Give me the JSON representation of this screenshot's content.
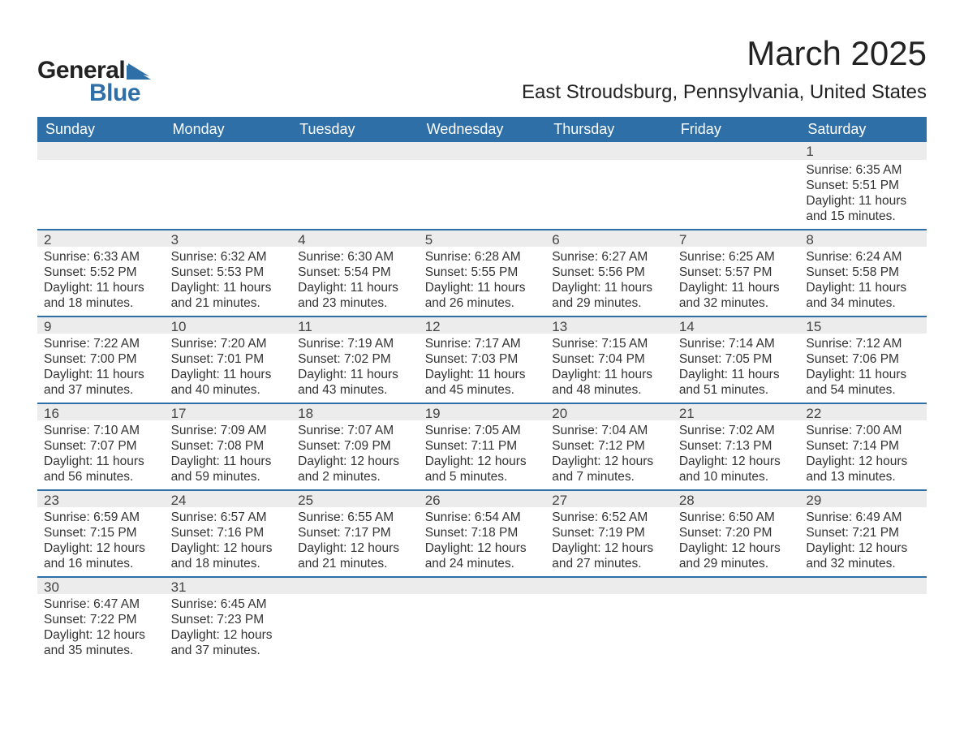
{
  "logo": {
    "text_general": "General",
    "text_blue": "Blue",
    "flag_color": "#2f6fa7"
  },
  "title": "March 2025",
  "location": "East Stroudsburg, Pennsylvania, United States",
  "colors": {
    "header_bg": "#2f6fa7",
    "header_text": "#ffffff",
    "band_bg": "#ececec",
    "band_border": "#2f6fa7",
    "body_text": "#333333",
    "page_bg": "#ffffff"
  },
  "weekdays": [
    "Sunday",
    "Monday",
    "Tuesday",
    "Wednesday",
    "Thursday",
    "Friday",
    "Saturday"
  ],
  "weeks": [
    [
      {
        "n": "",
        "sunrise": "",
        "sunset": "",
        "daylight": ""
      },
      {
        "n": "",
        "sunrise": "",
        "sunset": "",
        "daylight": ""
      },
      {
        "n": "",
        "sunrise": "",
        "sunset": "",
        "daylight": ""
      },
      {
        "n": "",
        "sunrise": "",
        "sunset": "",
        "daylight": ""
      },
      {
        "n": "",
        "sunrise": "",
        "sunset": "",
        "daylight": ""
      },
      {
        "n": "",
        "sunrise": "",
        "sunset": "",
        "daylight": ""
      },
      {
        "n": "1",
        "sunrise": "Sunrise: 6:35 AM",
        "sunset": "Sunset: 5:51 PM",
        "daylight": "Daylight: 11 hours and 15 minutes."
      }
    ],
    [
      {
        "n": "2",
        "sunrise": "Sunrise: 6:33 AM",
        "sunset": "Sunset: 5:52 PM",
        "daylight": "Daylight: 11 hours and 18 minutes."
      },
      {
        "n": "3",
        "sunrise": "Sunrise: 6:32 AM",
        "sunset": "Sunset: 5:53 PM",
        "daylight": "Daylight: 11 hours and 21 minutes."
      },
      {
        "n": "4",
        "sunrise": "Sunrise: 6:30 AM",
        "sunset": "Sunset: 5:54 PM",
        "daylight": "Daylight: 11 hours and 23 minutes."
      },
      {
        "n": "5",
        "sunrise": "Sunrise: 6:28 AM",
        "sunset": "Sunset: 5:55 PM",
        "daylight": "Daylight: 11 hours and 26 minutes."
      },
      {
        "n": "6",
        "sunrise": "Sunrise: 6:27 AM",
        "sunset": "Sunset: 5:56 PM",
        "daylight": "Daylight: 11 hours and 29 minutes."
      },
      {
        "n": "7",
        "sunrise": "Sunrise: 6:25 AM",
        "sunset": "Sunset: 5:57 PM",
        "daylight": "Daylight: 11 hours and 32 minutes."
      },
      {
        "n": "8",
        "sunrise": "Sunrise: 6:24 AM",
        "sunset": "Sunset: 5:58 PM",
        "daylight": "Daylight: 11 hours and 34 minutes."
      }
    ],
    [
      {
        "n": "9",
        "sunrise": "Sunrise: 7:22 AM",
        "sunset": "Sunset: 7:00 PM",
        "daylight": "Daylight: 11 hours and 37 minutes."
      },
      {
        "n": "10",
        "sunrise": "Sunrise: 7:20 AM",
        "sunset": "Sunset: 7:01 PM",
        "daylight": "Daylight: 11 hours and 40 minutes."
      },
      {
        "n": "11",
        "sunrise": "Sunrise: 7:19 AM",
        "sunset": "Sunset: 7:02 PM",
        "daylight": "Daylight: 11 hours and 43 minutes."
      },
      {
        "n": "12",
        "sunrise": "Sunrise: 7:17 AM",
        "sunset": "Sunset: 7:03 PM",
        "daylight": "Daylight: 11 hours and 45 minutes."
      },
      {
        "n": "13",
        "sunrise": "Sunrise: 7:15 AM",
        "sunset": "Sunset: 7:04 PM",
        "daylight": "Daylight: 11 hours and 48 minutes."
      },
      {
        "n": "14",
        "sunrise": "Sunrise: 7:14 AM",
        "sunset": "Sunset: 7:05 PM",
        "daylight": "Daylight: 11 hours and 51 minutes."
      },
      {
        "n": "15",
        "sunrise": "Sunrise: 7:12 AM",
        "sunset": "Sunset: 7:06 PM",
        "daylight": "Daylight: 11 hours and 54 minutes."
      }
    ],
    [
      {
        "n": "16",
        "sunrise": "Sunrise: 7:10 AM",
        "sunset": "Sunset: 7:07 PM",
        "daylight": "Daylight: 11 hours and 56 minutes."
      },
      {
        "n": "17",
        "sunrise": "Sunrise: 7:09 AM",
        "sunset": "Sunset: 7:08 PM",
        "daylight": "Daylight: 11 hours and 59 minutes."
      },
      {
        "n": "18",
        "sunrise": "Sunrise: 7:07 AM",
        "sunset": "Sunset: 7:09 PM",
        "daylight": "Daylight: 12 hours and 2 minutes."
      },
      {
        "n": "19",
        "sunrise": "Sunrise: 7:05 AM",
        "sunset": "Sunset: 7:11 PM",
        "daylight": "Daylight: 12 hours and 5 minutes."
      },
      {
        "n": "20",
        "sunrise": "Sunrise: 7:04 AM",
        "sunset": "Sunset: 7:12 PM",
        "daylight": "Daylight: 12 hours and 7 minutes."
      },
      {
        "n": "21",
        "sunrise": "Sunrise: 7:02 AM",
        "sunset": "Sunset: 7:13 PM",
        "daylight": "Daylight: 12 hours and 10 minutes."
      },
      {
        "n": "22",
        "sunrise": "Sunrise: 7:00 AM",
        "sunset": "Sunset: 7:14 PM",
        "daylight": "Daylight: 12 hours and 13 minutes."
      }
    ],
    [
      {
        "n": "23",
        "sunrise": "Sunrise: 6:59 AM",
        "sunset": "Sunset: 7:15 PM",
        "daylight": "Daylight: 12 hours and 16 minutes."
      },
      {
        "n": "24",
        "sunrise": "Sunrise: 6:57 AM",
        "sunset": "Sunset: 7:16 PM",
        "daylight": "Daylight: 12 hours and 18 minutes."
      },
      {
        "n": "25",
        "sunrise": "Sunrise: 6:55 AM",
        "sunset": "Sunset: 7:17 PM",
        "daylight": "Daylight: 12 hours and 21 minutes."
      },
      {
        "n": "26",
        "sunrise": "Sunrise: 6:54 AM",
        "sunset": "Sunset: 7:18 PM",
        "daylight": "Daylight: 12 hours and 24 minutes."
      },
      {
        "n": "27",
        "sunrise": "Sunrise: 6:52 AM",
        "sunset": "Sunset: 7:19 PM",
        "daylight": "Daylight: 12 hours and 27 minutes."
      },
      {
        "n": "28",
        "sunrise": "Sunrise: 6:50 AM",
        "sunset": "Sunset: 7:20 PM",
        "daylight": "Daylight: 12 hours and 29 minutes."
      },
      {
        "n": "29",
        "sunrise": "Sunrise: 6:49 AM",
        "sunset": "Sunset: 7:21 PM",
        "daylight": "Daylight: 12 hours and 32 minutes."
      }
    ],
    [
      {
        "n": "30",
        "sunrise": "Sunrise: 6:47 AM",
        "sunset": "Sunset: 7:22 PM",
        "daylight": "Daylight: 12 hours and 35 minutes."
      },
      {
        "n": "31",
        "sunrise": "Sunrise: 6:45 AM",
        "sunset": "Sunset: 7:23 PM",
        "daylight": "Daylight: 12 hours and 37 minutes."
      },
      {
        "n": "",
        "sunrise": "",
        "sunset": "",
        "daylight": ""
      },
      {
        "n": "",
        "sunrise": "",
        "sunset": "",
        "daylight": ""
      },
      {
        "n": "",
        "sunrise": "",
        "sunset": "",
        "daylight": ""
      },
      {
        "n": "",
        "sunrise": "",
        "sunset": "",
        "daylight": ""
      },
      {
        "n": "",
        "sunrise": "",
        "sunset": "",
        "daylight": ""
      }
    ]
  ]
}
